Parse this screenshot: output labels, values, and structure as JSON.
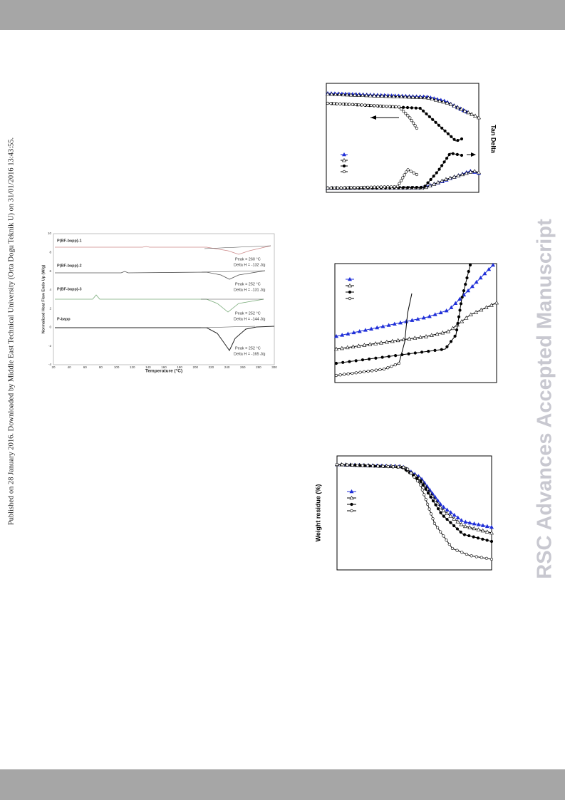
{
  "side_note": "Published on 28 January 2016. Downloaded by Middle East Technical University (Orta Dogu Teknik U) on 31/01/2016 13:43:55.",
  "watermark": "RSC Advances Accepted Manuscript",
  "dsc_figure": {
    "series_labels": [
      "P(BF-bapp)-1",
      "P(BF-bapp)-2",
      "P(BF-bapp)-3",
      "P-bapp"
    ],
    "annotations": [
      {
        "peak": "Peak = 260 °C",
        "delta_h": "Delta H = -132 J/g"
      },
      {
        "peak": "Peak = 252 °C",
        "delta_h": "Delta H = -131 J/g"
      },
      {
        "peak": "Peak = 252 °C",
        "delta_h": "Delta H = -144 J/g"
      },
      {
        "peak": "Peak = 252 °C",
        "delta_h": "Delta H = -165 J/g"
      }
    ],
    "y_axis_label": "Normalized Heat Flow Endo Up (W/g)",
    "x_axis_label": "Temperature (°C)",
    "x_ticks": [
      20,
      40,
      60,
      80,
      100,
      120,
      140,
      160,
      180,
      200,
      220,
      240,
      260,
      280,
      300
    ],
    "y_ticks": [
      10,
      8,
      6,
      4,
      2,
      0,
      -2,
      -4
    ]
  },
  "dma_figure": {
    "y2_axis_label": "Tan Delta"
  },
  "tga_figure": {
    "y_axis_label": "Weight residue (%)"
  }
}
